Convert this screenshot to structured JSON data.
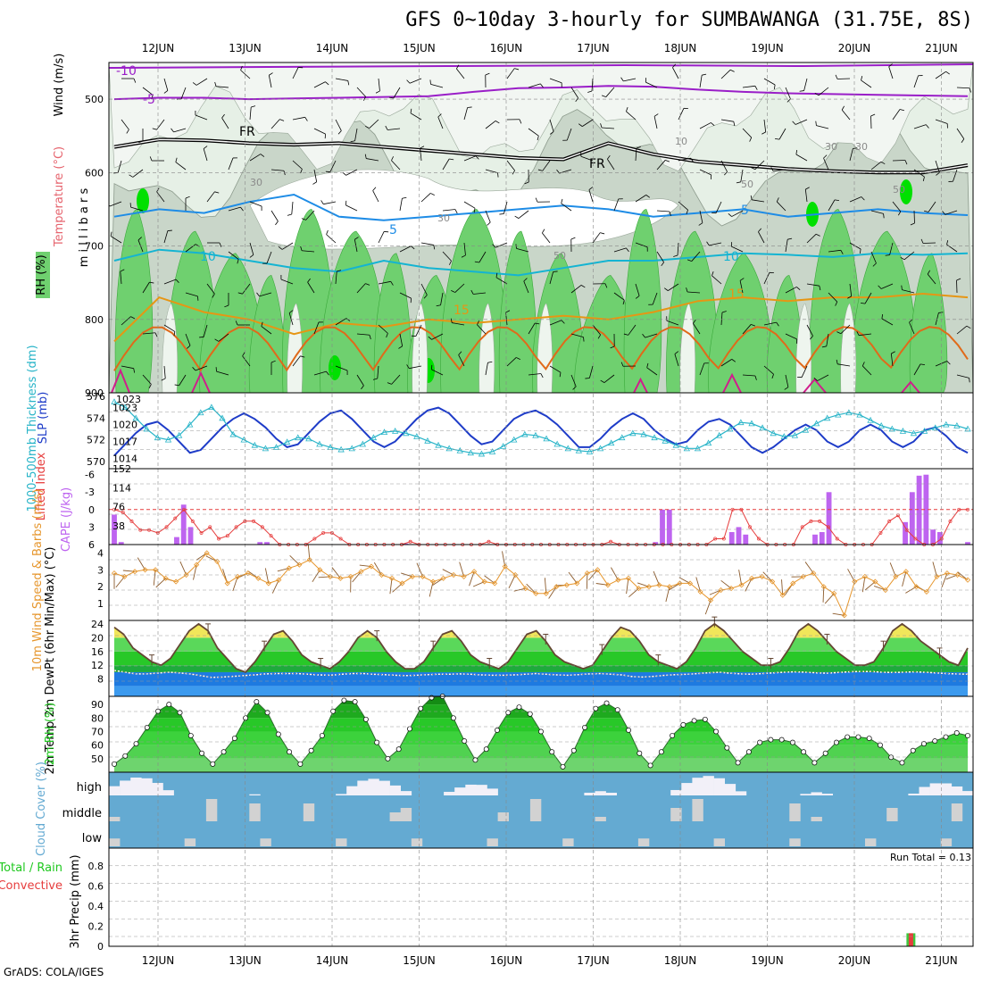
{
  "title": "GFS 0~10day 3-hourly for SUMBAWANGA (31.75E, 8S)",
  "credit": "GrADS: COLA/IGES",
  "dates": [
    "12JUN",
    "13JUN",
    "14JUN",
    "15JUN",
    "16JUN",
    "17JUN",
    "18JUN",
    "19JUN",
    "20JUN",
    "21JUN"
  ],
  "colors": {
    "rh_light": "#e6f0e6",
    "rh_mid": "#c9d6c9",
    "rh_green": "#6fd06f",
    "rh_bright": "#00e000",
    "temp_purple": "#9a1ec8",
    "temp_blue": "#1e8ce6",
    "temp_cyan": "#14b4d2",
    "temp_orange": "#e69614",
    "slp": "#1e3cc8",
    "thickness": "#28b4c8",
    "cape": "#be64f0",
    "lifted": "#e63c3c",
    "wind": "#e6962d",
    "temp_line": "#644632",
    "rh_line": "#1ec81e",
    "cloud": "#64aad2"
  },
  "chart_data": [
    {
      "type": "heatmap",
      "panel": "upper-air",
      "ylabel": "millibars",
      "yticks": [
        500,
        600,
        700,
        800,
        900
      ],
      "ylim": [
        900,
        450
      ],
      "legend": [
        "RH (%)",
        "Temperature (°C)",
        "Wind (m/s)"
      ],
      "contour_labels": [
        "-10",
        "-5",
        "FR",
        "FR",
        "5",
        "5",
        "10",
        "10",
        "15",
        "15",
        "30",
        "30",
        "30",
        "50",
        "50",
        "50",
        "10",
        "30"
      ],
      "isotherms": [
        {
          "level": "-5",
          "color": "#9a1ec8",
          "y_mb": [
            500,
            498,
            498,
            500,
            499,
            498,
            497,
            496,
            490,
            485,
            484,
            482,
            483,
            487,
            490,
            492,
            493,
            494,
            495,
            496
          ]
        },
        {
          "level": "0",
          "color": "#000000",
          "y_mb": [
            565,
            555,
            556,
            560,
            562,
            560,
            565,
            570,
            575,
            580,
            582,
            560,
            575,
            585,
            590,
            595,
            598,
            600,
            600,
            590
          ]
        },
        {
          "level": "5",
          "color": "#1e8ce6",
          "y_mb": [
            660,
            650,
            655,
            640,
            630,
            660,
            665,
            660,
            655,
            650,
            645,
            650,
            660,
            655,
            650,
            660,
            655,
            650,
            655,
            658
          ]
        },
        {
          "level": "10",
          "color": "#14b4d2",
          "y_mb": [
            720,
            705,
            710,
            720,
            730,
            735,
            720,
            730,
            735,
            740,
            730,
            720,
            720,
            715,
            710,
            712,
            715,
            710,
            712,
            710
          ]
        },
        {
          "level": "15",
          "color": "#e69614",
          "y_mb": [
            830,
            770,
            790,
            800,
            820,
            805,
            810,
            800,
            805,
            800,
            795,
            800,
            790,
            775,
            770,
            775,
            770,
            770,
            765,
            770
          ]
        }
      ]
    },
    {
      "type": "line",
      "panel": "thickness-slp",
      "ylabel_left": "1000-500mb Thickness (dm)",
      "ylabel_right": "SLP (mb)",
      "yticks_left": [
        570,
        572,
        574,
        576
      ],
      "yticks_right": [
        1014,
        1017,
        1020,
        1023
      ],
      "series": [
        {
          "name": "SLP (mb)",
          "color": "#1e3cc8",
          "values": [
            1014.5,
            1016.5,
            1018.5,
            1020,
            1020.5,
            1019,
            1017,
            1015,
            1015.5,
            1017.5,
            1019.5,
            1021,
            1022,
            1021,
            1019.5,
            1017.5,
            1016,
            1016.5,
            1018.5,
            1020.5,
            1022,
            1022.5,
            1021,
            1019,
            1017,
            1016,
            1017,
            1019,
            1021,
            1022.5,
            1023,
            1022,
            1020,
            1018,
            1016.5,
            1017,
            1019,
            1021,
            1022,
            1022.5,
            1021.5,
            1020,
            1018,
            1016,
            1016,
            1017.5,
            1019.5,
            1021,
            1022,
            1021,
            1019,
            1017.5,
            1016.5,
            1017,
            1019,
            1020.5,
            1021,
            1020,
            1018,
            1016,
            1015,
            1016,
            1017.5,
            1019,
            1020,
            1019,
            1017,
            1016,
            1017,
            1019,
            1020,
            1019,
            1017,
            1016,
            1017,
            1019,
            1019.5,
            1018,
            1016,
            1015
          ]
        },
        {
          "name": "1000-500mb Thickness (dm)",
          "color": "#28b4c8",
          "values": [
            575.5,
            575,
            574,
            573,
            572.2,
            572,
            572.4,
            573.4,
            574.5,
            575,
            574,
            572.5,
            572,
            571.5,
            571.2,
            571.3,
            571.8,
            572.2,
            572.1,
            571.6,
            571.3,
            571.1,
            571.2,
            571.6,
            572.2,
            572.7,
            572.8,
            572.6,
            572.3,
            571.9,
            571.5,
            571.2,
            571,
            570.8,
            570.7,
            570.9,
            571.4,
            572,
            572.5,
            572.4,
            572.1,
            571.6,
            571.2,
            571,
            570.9,
            571.2,
            571.7,
            572.2,
            572.6,
            572.5,
            572.2,
            571.9,
            571.5,
            571.2,
            571.2,
            571.7,
            572.4,
            573,
            573.6,
            573.5,
            573.1,
            572.6,
            572.3,
            572.4,
            572.9,
            573.5,
            574,
            574.3,
            574.5,
            574.3,
            573.8,
            573.3,
            573,
            572.8,
            572.6,
            572.8,
            573.1,
            573.4,
            573.3,
            573
          ]
        }
      ]
    },
    {
      "type": "bar",
      "panel": "cape-li",
      "ylabel_left": "Lifted Index",
      "ylabel_right": "CAPE (J/kg)",
      "yticks_left": [
        -6,
        -3,
        0,
        3,
        6
      ],
      "yticks_right": [
        38,
        76,
        114,
        152
      ],
      "series": [
        {
          "name": "CAPE (J/kg)",
          "color": "#be64f0",
          "values": [
            60,
            5,
            0,
            0,
            0,
            0,
            0,
            0,
            0,
            15,
            80,
            35,
            0,
            0,
            0,
            0,
            0,
            0,
            0,
            0,
            0,
            5,
            5,
            0,
            0,
            0,
            0,
            0,
            0,
            0,
            0,
            0,
            0,
            0,
            0,
            0,
            0,
            0,
            0,
            0,
            0,
            0,
            2,
            0,
            0,
            0,
            0,
            0,
            0,
            0,
            0,
            0,
            0,
            0,
            0,
            0,
            0,
            0,
            0,
            0,
            0,
            0,
            0,
            0,
            0,
            0,
            0,
            0,
            0,
            0,
            0,
            0,
            0,
            0,
            0,
            0,
            0,
            0,
            5,
            70,
            70,
            0,
            0,
            0,
            0,
            0,
            0,
            0,
            0,
            25,
            35,
            20,
            0,
            0,
            0,
            0,
            0,
            0,
            0,
            0,
            0,
            20,
            25,
            105,
            0,
            0,
            0,
            0,
            0,
            0,
            0,
            0,
            0,
            0,
            45,
            105,
            138,
            140,
            30,
            25,
            0,
            0,
            0,
            5
          ]
        },
        {
          "name": "Lifted Index",
          "color": "#e63c3c",
          "values": [
            0,
            0.5,
            2,
            3.5,
            3.5,
            4,
            3,
            1.5,
            0,
            2,
            4,
            3,
            5,
            4.5,
            3,
            2,
            2,
            3,
            4.5,
            6,
            6,
            6,
            6,
            5,
            4,
            4,
            5,
            6,
            6,
            6,
            6,
            6,
            6,
            6,
            5.5,
            6,
            6,
            6,
            6,
            6,
            6,
            6,
            6,
            5.5,
            6,
            6,
            6,
            6,
            6,
            6,
            6,
            6,
            6,
            6,
            6,
            6,
            6,
            5.5,
            6,
            6,
            6,
            6,
            6,
            6,
            6,
            6,
            6,
            6,
            6,
            5,
            5,
            0,
            0,
            3,
            5,
            6,
            6,
            6,
            6,
            3,
            2,
            2,
            3,
            5,
            6,
            6,
            6,
            6,
            4,
            2,
            1,
            3.5,
            5,
            6,
            6,
            5,
            2,
            0,
            0
          ]
        }
      ]
    },
    {
      "type": "line",
      "panel": "wind10m",
      "ylabel": "10m Wind Speed & Barbs (m/s)",
      "yticks": [
        1,
        2,
        3,
        4
      ],
      "series": [
        {
          "name": "10m Wind Speed",
          "color": "#e6962d",
          "values": [
            2.8,
            2.6,
            2.9,
            3.0,
            3.0,
            2.5,
            2.3,
            2.7,
            3.3,
            4.0,
            3.5,
            2.2,
            2.6,
            2.8,
            2.5,
            2.2,
            2.4,
            3.1,
            3.3,
            3.6,
            3.0,
            2.6,
            2.5,
            2.6,
            2.9,
            3.2,
            2.7,
            2.5,
            2.2,
            2.6,
            2.6,
            2.3,
            2.5,
            2.7,
            2.6,
            2.9,
            2.3,
            2.2,
            3.2,
            2.7,
            1.9,
            1.6,
            1.6,
            2.0,
            2.1,
            2.2,
            2.8,
            3.0,
            2.1,
            2.4,
            2.5,
            1.9,
            2.0,
            2.1,
            2.0,
            2.2,
            2.2,
            1.7,
            1.2,
            1.8,
            1.9,
            2.1,
            2.5,
            2.6,
            2.3,
            1.5,
            2.2,
            2.6,
            2.8,
            2.0,
            1.6,
            0.3,
            2.3,
            2.6,
            2.3,
            1.8,
            2.6,
            2.9,
            2.0,
            1.7,
            2.6,
            2.8,
            2.7,
            2.4
          ]
        }
      ]
    },
    {
      "type": "area",
      "panel": "temp2m",
      "ylabel": "2m Temp 2m DewPt (6hr Min/Max) (°C)",
      "yticks": [
        8,
        12,
        16,
        20,
        24
      ],
      "series": [
        {
          "name": "2m Temp",
          "color": "#644632",
          "values": [
            23,
            21,
            17,
            15,
            13,
            12,
            14,
            18,
            22,
            24,
            22,
            17,
            14,
            11,
            10,
            13,
            17,
            21,
            22,
            19,
            15,
            13,
            12,
            11,
            13,
            16,
            20,
            22,
            20,
            16,
            13,
            11,
            11,
            13,
            17,
            21,
            22,
            19,
            15,
            13,
            12,
            11,
            13,
            17,
            21,
            22,
            19,
            15,
            13,
            12,
            11,
            12,
            16,
            20,
            23,
            22,
            19,
            15,
            13,
            12,
            11,
            13,
            17,
            22,
            24,
            22,
            19,
            16,
            14,
            12,
            12,
            13,
            17,
            22,
            24,
            22,
            19,
            16,
            14,
            12,
            12,
            13,
            17,
            22,
            24,
            22,
            19,
            17,
            15,
            13,
            12,
            17
          ]
        },
        {
          "name": "2m DewPt",
          "color": "#ffffff",
          "values": [
            10.5,
            10,
            9.5,
            9.5,
            9.7,
            10,
            9.8,
            9.5,
            9,
            8.5,
            8.6,
            8.8,
            9,
            9.2,
            9.5,
            9.6,
            9.6,
            9.6,
            9.4,
            9.2,
            9.1,
            9.4,
            9.6,
            9.6,
            9.4,
            9.3,
            9.1,
            9,
            9.1,
            9.3,
            9.4,
            9.4,
            9.5,
            9.4,
            9.2,
            9.1,
            9.1,
            9.2,
            9.4,
            9.6,
            9.4,
            9.2,
            9.1,
            9.3,
            9.5,
            9.6,
            9.4,
            9.2,
            8.7,
            8.6,
            8.8,
            9.1,
            9.3,
            9.4,
            9.6,
            9.8,
            10,
            9.7,
            9.5,
            9.4,
            9.6,
            9.8,
            10,
            10.1,
            10,
            9.8,
            9.7,
            9.9,
            10.1,
            10.2,
            10.2,
            10,
            9.9,
            10,
            10.1,
            10,
            9.8,
            9.6,
            9.5,
            9.4
          ]
        }
      ]
    },
    {
      "type": "area",
      "panel": "rh2m",
      "ylabel": "2m RH (%)",
      "yticks": [
        50,
        60,
        70,
        80,
        90
      ],
      "series": [
        {
          "name": "2m RH",
          "color": "#1ec81e",
          "values": [
            46,
            52,
            61,
            73,
            85,
            90,
            84,
            67,
            54,
            46,
            55,
            65,
            80,
            92,
            84,
            68,
            55,
            46,
            56,
            67,
            85,
            93,
            92,
            79,
            62,
            50,
            57,
            72,
            87,
            95,
            96,
            80,
            63,
            49,
            57,
            71,
            84,
            88,
            83,
            70,
            55,
            44,
            56,
            73,
            87,
            91,
            86,
            71,
            54,
            45,
            55,
            67,
            75,
            78,
            79,
            70,
            58,
            47,
            55,
            62,
            64,
            64,
            62,
            55,
            47,
            54,
            62,
            66,
            66,
            65,
            60,
            51,
            47,
            56,
            61,
            63,
            66,
            69,
            67
          ]
        }
      ]
    },
    {
      "type": "bar",
      "panel": "cloud",
      "ylabel": "Cloud Cover (%)",
      "categories": [
        "high",
        "middle",
        "low"
      ]
    },
    {
      "type": "bar",
      "panel": "precip",
      "ylabel": "3hr Precip (mm)",
      "legend": [
        "Total / Rain",
        "Convective"
      ],
      "yticks": [
        0,
        0.2,
        0.4,
        0.6,
        0.8
      ],
      "annotation": "Run Total = 0.13",
      "bars": [
        {
          "date_index": 8.65,
          "total": 0.13,
          "convective": 0.13
        }
      ]
    }
  ]
}
